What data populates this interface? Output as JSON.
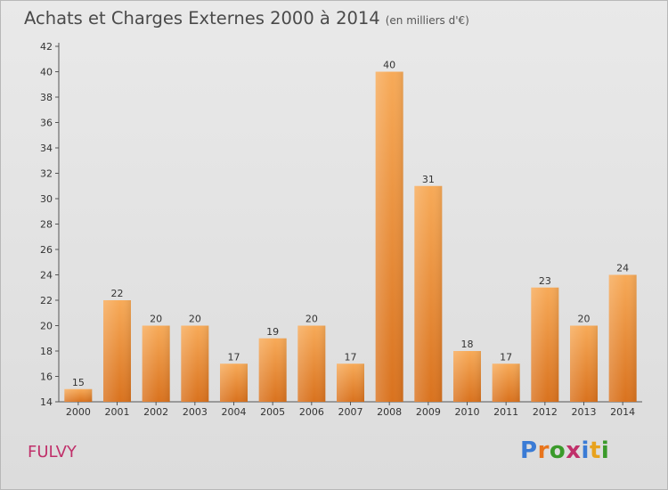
{
  "header": {
    "title": "Achats et Charges Externes 2000 à 2014",
    "unit": "(en milliers d'€)"
  },
  "commune": "FULVY",
  "logo": {
    "text": "Proxiti",
    "letters": [
      {
        "ch": "P",
        "color": "#3a7bd5"
      },
      {
        "ch": "r",
        "color": "#e8741c"
      },
      {
        "ch": "o",
        "color": "#3a9a2a"
      },
      {
        "ch": "x",
        "color": "#c0306a"
      },
      {
        "ch": "i",
        "color": "#3a7bd5"
      },
      {
        "ch": "t",
        "color": "#e8a21c"
      },
      {
        "ch": "i",
        "color": "#3a9a2a"
      }
    ]
  },
  "chart_data": {
    "type": "bar",
    "categories": [
      "2000",
      "2001",
      "2002",
      "2003",
      "2004",
      "2005",
      "2006",
      "2007",
      "2008",
      "2009",
      "2010",
      "2011",
      "2012",
      "2013",
      "2014"
    ],
    "values": [
      15,
      22,
      20,
      20,
      17,
      19,
      20,
      17,
      40,
      31,
      18,
      17,
      23,
      20,
      24
    ],
    "title": "Achats et Charges Externes 2000 à 2014",
    "xlabel": "",
    "ylabel": "",
    "ylim": [
      14,
      42
    ],
    "yticks": [
      14,
      16,
      18,
      20,
      22,
      24,
      26,
      28,
      30,
      32,
      34,
      36,
      38,
      40,
      42
    ],
    "grid": false,
    "legend": "none",
    "bar_color": "#e8822a",
    "bar_color_light": "#f6a95a"
  }
}
